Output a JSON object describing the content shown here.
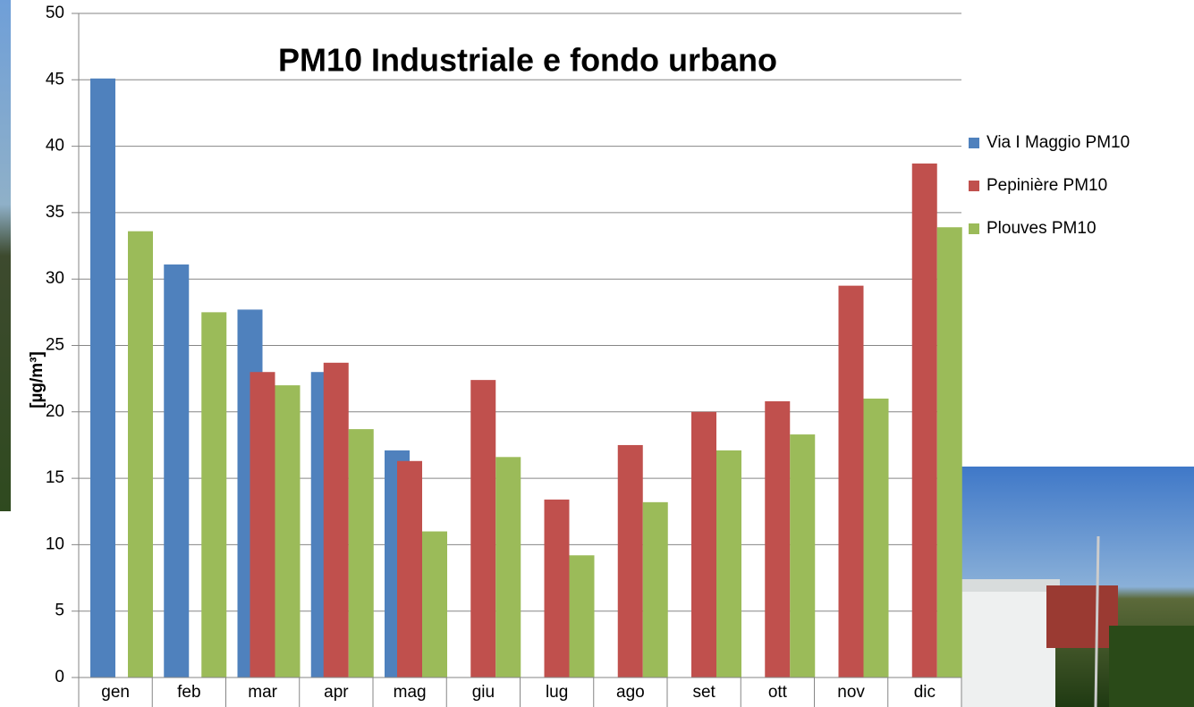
{
  "chart_data": {
    "type": "bar",
    "title": "PM10 Industriale e fondo urbano",
    "y_label": "[µg/m³]",
    "categories": [
      "gen",
      "feb",
      "mar",
      "apr",
      "mag",
      "giu",
      "lug",
      "ago",
      "set",
      "ott",
      "nov",
      "dic"
    ],
    "series": [
      {
        "name": "Via I Maggio PM10",
        "color": "#4f81bd",
        "values": [
          45.1,
          31.1,
          27.7,
          23.0,
          17.1,
          null,
          null,
          null,
          null,
          null,
          null,
          null
        ]
      },
      {
        "name": "Pepinière PM10",
        "color": "#c0504d",
        "values": [
          null,
          null,
          23.0,
          23.7,
          16.3,
          22.4,
          13.4,
          17.5,
          20.0,
          20.8,
          29.5,
          38.7
        ]
      },
      {
        "name": "Plouves PM10",
        "color": "#9bbb59",
        "values": [
          33.6,
          27.5,
          22.0,
          18.7,
          11.0,
          16.6,
          9.2,
          13.2,
          17.1,
          18.3,
          21.0,
          33.9
        ]
      }
    ],
    "ylim": [
      0,
      50
    ],
    "yticks": [
      0,
      5,
      10,
      15,
      20,
      25,
      30,
      35,
      40,
      45,
      50
    ],
    "grid": true,
    "legend": "right"
  }
}
